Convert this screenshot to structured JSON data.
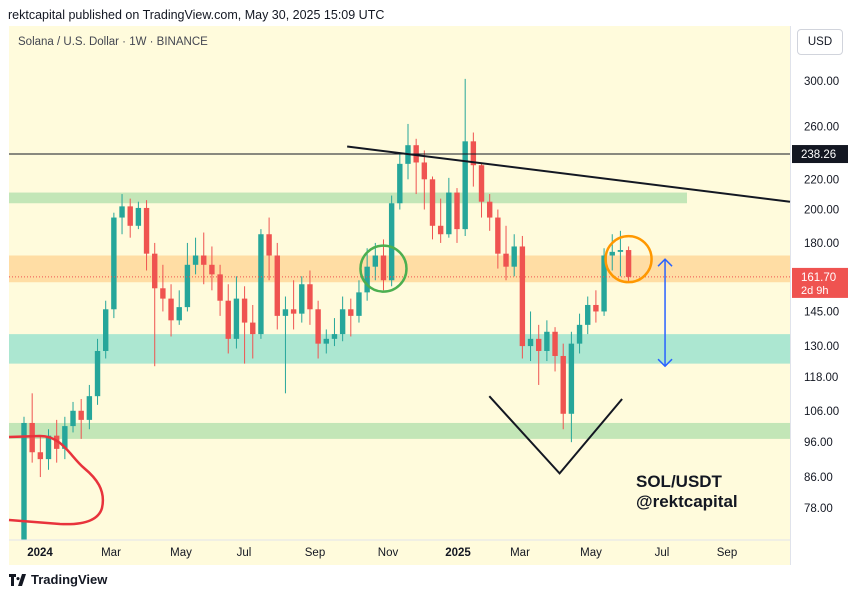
{
  "header": {
    "published": "rektcapital published on TradingView.com, May 30, 2025 15:09 UTC"
  },
  "symbol": {
    "description": "Solana / U.S. Dollar · 1W · BINANCE"
  },
  "currency_button": "USD",
  "footer": {
    "brand": "TradingView"
  },
  "colors": {
    "up": "#26a69a",
    "down": "#ef5350",
    "background": "#fffbdc",
    "zone_orange": "#ffd79a",
    "zone_green": "#b8e2b0",
    "zone_teal": "#9ee3cf",
    "arrow": "#2962ff",
    "circle_green": "#4caf50",
    "circle_orange": "#ff9800",
    "freehand": "#e8333c"
  },
  "chart_data": {
    "type": "candlestick",
    "title": "Solana / U.S. Dollar · 1W · BINANCE",
    "y_scale": "log",
    "ylim": [
      70,
      340
    ],
    "x_ticks": [
      "2024",
      "Mar",
      "May",
      "Jul",
      "Sep",
      "Nov",
      "2025",
      "Mar",
      "May",
      "Jul",
      "Sep"
    ],
    "y_ticks": [
      300,
      260,
      220,
      200,
      180,
      145,
      130,
      118,
      106,
      96,
      86,
      78
    ],
    "y_tick_labels": [
      "300.00",
      "260.00",
      "220.00",
      "200.00",
      "180.00",
      "145.00",
      "130.00",
      "118.00",
      "106.00",
      "96.00",
      "86.00",
      "78.00"
    ],
    "price_labels": [
      {
        "value": 238.26,
        "text": "238.26",
        "style": "dark"
      },
      {
        "value": 161.7,
        "text": "161.70",
        "subtext": "2d 9h",
        "style": "red"
      }
    ],
    "horizontal_lines": [
      238.26
    ],
    "zones": [
      {
        "name": "green-zone-top",
        "low": 204,
        "high": 211
      },
      {
        "name": "orange-zone",
        "low": 159,
        "high": 173
      },
      {
        "name": "teal-zone",
        "low": 123,
        "high": 135
      },
      {
        "name": "green-zone-bottom",
        "low": 97,
        "high": 102
      }
    ],
    "candles": [
      [
        70,
        102,
        68,
        104
      ],
      [
        102,
        93,
        90,
        112
      ],
      [
        93,
        91,
        86,
        98
      ],
      [
        91,
        98,
        88,
        100
      ],
      [
        98,
        94,
        90,
        103
      ],
      [
        94,
        101,
        91,
        104
      ],
      [
        101,
        106,
        99,
        109
      ],
      [
        106,
        103,
        97,
        110
      ],
      [
        103,
        111,
        100,
        115
      ],
      [
        111,
        128,
        108,
        133
      ],
      [
        128,
        146,
        125,
        150
      ],
      [
        146,
        195,
        142,
        198
      ],
      [
        195,
        202,
        185,
        210
      ],
      [
        202,
        190,
        183,
        207
      ],
      [
        190,
        201,
        188,
        205
      ],
      [
        201,
        174,
        165,
        206
      ],
      [
        174,
        156,
        122,
        180
      ],
      [
        156,
        151,
        145,
        168
      ],
      [
        151,
        141,
        134,
        158
      ],
      [
        141,
        147,
        139,
        155
      ],
      [
        147,
        168,
        145,
        180
      ],
      [
        168,
        173,
        163,
        183
      ],
      [
        173,
        168,
        158,
        186
      ],
      [
        168,
        163,
        155,
        178
      ],
      [
        163,
        150,
        143,
        168
      ],
      [
        150,
        133,
        127,
        158
      ],
      [
        133,
        151,
        129,
        162
      ],
      [
        151,
        140,
        123,
        157
      ],
      [
        140,
        135,
        125,
        148
      ],
      [
        135,
        185,
        133,
        188
      ],
      [
        185,
        173,
        160,
        195
      ],
      [
        173,
        143,
        137,
        180
      ],
      [
        143,
        146,
        112,
        152
      ],
      [
        146,
        144,
        137,
        160
      ],
      [
        144,
        158,
        140,
        162
      ],
      [
        158,
        146,
        139,
        165
      ],
      [
        146,
        131,
        125,
        150
      ],
      [
        131,
        133,
        127,
        137
      ],
      [
        133,
        135,
        130,
        142
      ],
      [
        135,
        146,
        132,
        152
      ],
      [
        146,
        143,
        134,
        151
      ],
      [
        143,
        154,
        140,
        160
      ],
      [
        154,
        167,
        150,
        177
      ],
      [
        167,
        173,
        160,
        180
      ],
      [
        173,
        160,
        155,
        182
      ],
      [
        160,
        204,
        157,
        209
      ],
      [
        204,
        231,
        200,
        238
      ],
      [
        231,
        245,
        220,
        262
      ],
      [
        245,
        232,
        210,
        250
      ],
      [
        232,
        220,
        200,
        241
      ],
      [
        220,
        190,
        182,
        222
      ],
      [
        190,
        185,
        180,
        207
      ],
      [
        185,
        211,
        183,
        221
      ],
      [
        211,
        188,
        180,
        214
      ],
      [
        188,
        248,
        184,
        302
      ],
      [
        248,
        230,
        215,
        255
      ],
      [
        230,
        205,
        195,
        232
      ],
      [
        205,
        195,
        187,
        210
      ],
      [
        195,
        174,
        166,
        200
      ],
      [
        174,
        167,
        160,
        190
      ],
      [
        167,
        178,
        162,
        185
      ],
      [
        178,
        130,
        125,
        184
      ],
      [
        130,
        133,
        124,
        145
      ],
      [
        133,
        128,
        115,
        139
      ],
      [
        128,
        136,
        124,
        141
      ],
      [
        136,
        126,
        120,
        138
      ],
      [
        126,
        105,
        100,
        131
      ],
      [
        105,
        131,
        96,
        136
      ],
      [
        131,
        139,
        127,
        144
      ],
      [
        139,
        148,
        135,
        152
      ],
      [
        148,
        145,
        140,
        155
      ],
      [
        145,
        173,
        143,
        177
      ],
      [
        173,
        175,
        165,
        185
      ],
      [
        175,
        176,
        162,
        187
      ],
      [
        176,
        161.7,
        159,
        178
      ]
    ],
    "annotations": {
      "trendline": {
        "from": [
          0.5,
          244
        ],
        "to": [
          1.0,
          205
        ]
      },
      "v_shape": {
        "points": [
          [
            0.615,
            111
          ],
          [
            0.705,
            87
          ],
          [
            0.785,
            110
          ]
        ]
      },
      "arrow": {
        "x": 0.84,
        "from": 171,
        "to": 122
      },
      "circles": [
        {
          "name": "green-circle",
          "candle": 44,
          "value": 166,
          "color": "#4caf50"
        },
        {
          "name": "orange-circle",
          "candle": 74,
          "value": 171,
          "color": "#ff9800"
        }
      ],
      "text": [
        "SOL/USDT",
        "@rektcapital"
      ]
    }
  }
}
